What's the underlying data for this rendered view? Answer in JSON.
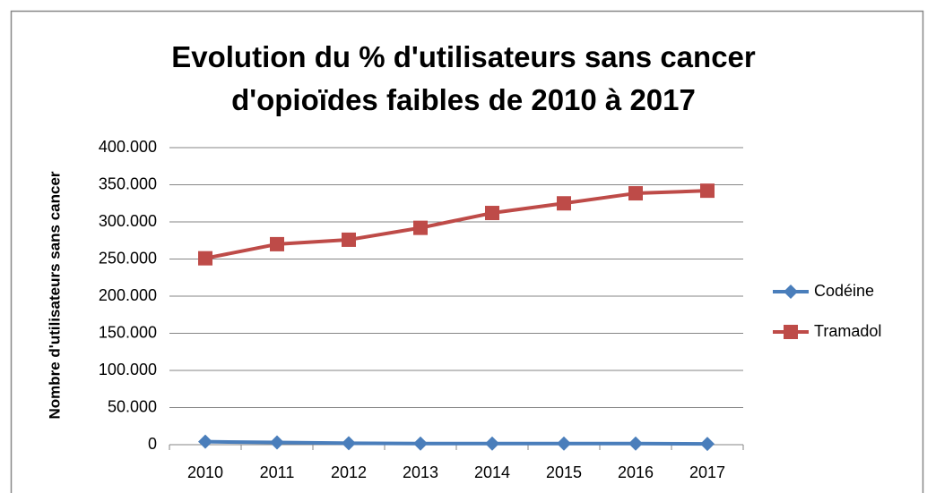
{
  "chart_data": {
    "type": "line",
    "title": "Evolution du % d'utilisateurs sans cancer d'opioïdes faibles de 2010 à 2017",
    "y_label": "Nombre d'utilisateurs sans cancer",
    "categories": [
      "2010",
      "2011",
      "2012",
      "2013",
      "2014",
      "2015",
      "2016",
      "2017"
    ],
    "series": [
      {
        "name": "Codéine",
        "color": "#4a7ebb",
        "marker": "diamond",
        "values": [
          4000,
          3000,
          2000,
          1500,
          1500,
          1500,
          1500,
          1000
        ]
      },
      {
        "name": "Tramadol",
        "color": "#be4b48",
        "marker": "square",
        "values": [
          251000,
          270000,
          276000,
          292000,
          312000,
          325000,
          338500,
          342000
        ]
      }
    ],
    "ylim": [
      0,
      400000
    ],
    "yticks": [
      0,
      {
        "value": 50000,
        "label": "50.000"
      },
      {
        "value": 100000,
        "label": "100.000"
      },
      {
        "value": 150000,
        "label": "150.000"
      },
      {
        "value": 200000,
        "label": "200.000"
      },
      {
        "value": 250000,
        "label": "250.000"
      },
      {
        "value": 300000,
        "label": "300.000"
      },
      {
        "value": 350000,
        "label": "350.000"
      },
      {
        "value": 400000,
        "label": "400.000"
      }
    ],
    "grid": true,
    "legend": "right"
  }
}
